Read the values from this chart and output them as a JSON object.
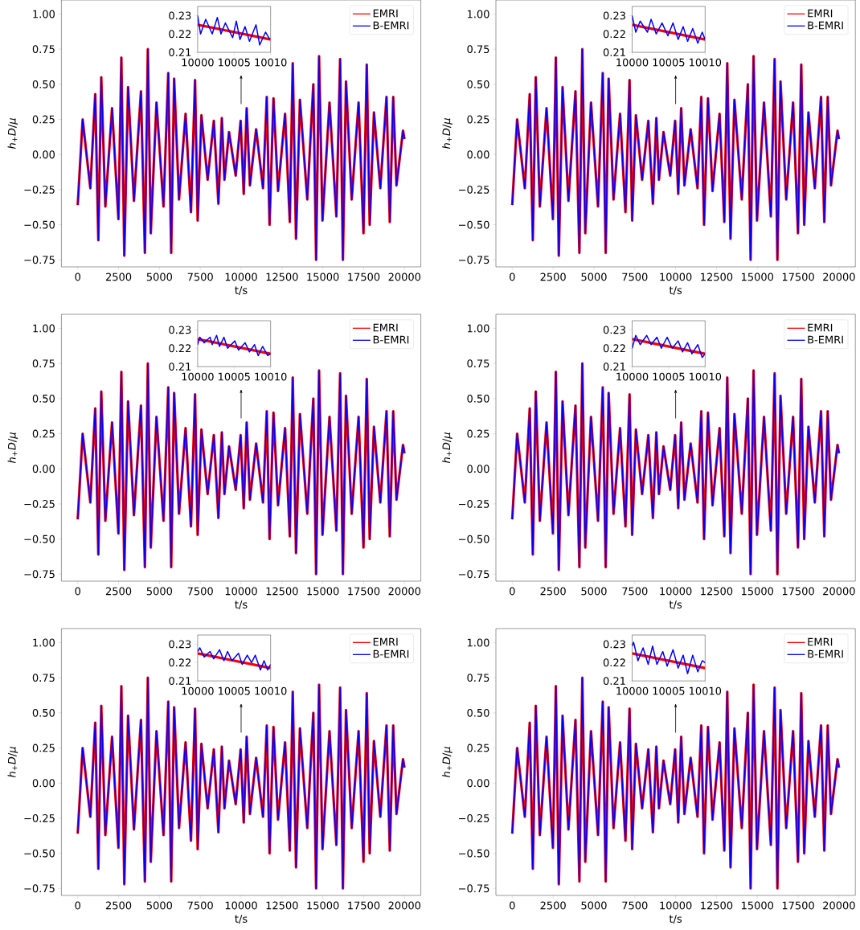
{
  "chart_data": [
    {
      "type": "line",
      "xlabel": "t/s",
      "ylabel": "*h*$_{+}$*D*/*μ*",
      "xlim": [
        -1000,
        21000
      ],
      "ylim": [
        -0.8,
        1.1
      ],
      "xticks": [
        0,
        2500,
        5000,
        7500,
        10000,
        12500,
        15000,
        17500,
        20000
      ],
      "yticks": [
        {
          "value": -0.75,
          "label": "−0.75"
        },
        {
          "value": -0.5,
          "label": "−0.50"
        },
        {
          "value": -0.25,
          "label": "−0.25"
        },
        {
          "value": 0,
          "label": "0.00"
        },
        0.25,
        {
          "value": 0.5,
          "label": "0.50"
        },
        0.75,
        {
          "value": 1,
          "label": "1.00"
        }
      ],
      "legend": "top right",
      "x": [
        0,
        300,
        770,
        1070,
        1260,
        1440,
        1690,
        2100,
        2490,
        2670,
        2850,
        3080,
        3440,
        3870,
        4110,
        4290,
        4470,
        4820,
        5250,
        5540,
        5720,
        5900,
        6200,
        6600,
        6930,
        7180,
        7340,
        7570,
        7950,
        8330,
        8610,
        8820,
        8980,
        9260,
        9670,
        9970,
        10160,
        10340,
        10540,
        10920,
        11340,
        11570,
        11740,
        11980,
        12260,
        12690,
        12980,
        13160,
        13360,
        13600,
        14050,
        14420,
        14590,
        14770,
        14980,
        15410,
        15830,
        16060,
        16230,
        16420,
        16770,
        17190,
        17490,
        17690,
        17870,
        18130,
        18520,
        18900,
        19100,
        19310,
        19510,
        19910,
        20000
      ],
      "series": [
        {
          "name": "EMRI",
          "color": "#ff0000",
          "values": [
            -0.36,
            0.25,
            -0.24,
            0.43,
            -0.61,
            0.55,
            -0.37,
            0.33,
            -0.46,
            0.69,
            -0.72,
            0.48,
            -0.33,
            0.45,
            -0.7,
            0.75,
            -0.56,
            0.37,
            -0.37,
            0.58,
            -0.7,
            0.54,
            -0.32,
            0.29,
            -0.41,
            0.53,
            -0.47,
            0.28,
            -0.18,
            0.24,
            -0.35,
            0.26,
            -0.18,
            0.16,
            -0.15,
            0.24,
            -0.28,
            0.33,
            -0.22,
            0.18,
            -0.24,
            0.41,
            -0.5,
            0.4,
            -0.26,
            0.29,
            -0.48,
            0.65,
            -0.6,
            0.39,
            -0.32,
            0.5,
            -0.75,
            0.7,
            -0.47,
            0.37,
            -0.44,
            0.68,
            -0.75,
            0.52,
            -0.32,
            0.37,
            -0.56,
            0.64,
            -0.5,
            0.3,
            -0.24,
            0.41,
            -0.48,
            0.41,
            -0.22,
            0.17,
            0.11
          ]
        },
        {
          "name": "B-EMRI",
          "color": "#0000ff",
          "values": [
            -0.36,
            0.25,
            -0.24,
            0.43,
            -0.61,
            0.55,
            -0.37,
            0.33,
            -0.46,
            0.69,
            -0.72,
            0.48,
            -0.33,
            0.45,
            -0.7,
            0.75,
            -0.56,
            0.37,
            -0.37,
            0.58,
            -0.7,
            0.54,
            -0.32,
            0.29,
            -0.41,
            0.53,
            -0.47,
            0.28,
            -0.18,
            0.24,
            -0.35,
            0.26,
            -0.18,
            0.16,
            -0.15,
            0.24,
            -0.28,
            0.33,
            -0.22,
            0.18,
            -0.24,
            0.41,
            -0.5,
            0.4,
            -0.26,
            0.29,
            -0.48,
            0.65,
            -0.6,
            0.39,
            -0.32,
            0.5,
            -0.75,
            0.7,
            -0.47,
            0.37,
            -0.44,
            0.68,
            -0.75,
            0.52,
            -0.32,
            0.37,
            -0.56,
            0.64,
            -0.5,
            0.3,
            -0.24,
            0.41,
            -0.48,
            0.41,
            -0.22,
            0.17,
            0.11
          ]
        }
      ]
    },
    {
      "type": "line",
      "xlim": [
        10000,
        10010
      ],
      "ylim": [
        0.21,
        0.235
      ],
      "xticks": [
        10000,
        10005,
        10010
      ],
      "yticks": [
        0.21,
        0.22,
        0.23
      ],
      "series": [
        {
          "color": "#ff0000",
          "x": [
            10000,
            10010
          ],
          "values": [
            0.225,
            0.217
          ]
        },
        {
          "color": "#0000ff",
          "x": [
            10000,
            10000.4,
            10001.1,
            10002,
            10002.7,
            10003.2,
            10003.8,
            10004.8,
            10005.3,
            10005.8,
            10006.5,
            10007.1,
            10008,
            10008.5,
            10009.3,
            10009.9
          ],
          "values": [
            0.23,
            0.22,
            0.228,
            0.22,
            0.229,
            0.22,
            0.226,
            0.218,
            0.227,
            0.217,
            0.224,
            0.216,
            0.225,
            0.214,
            0.221,
            0.217
          ]
        }
      ]
    },
    {
      "type": "line",
      "xlabel": "t/s",
      "ylabel": "*h*$_{+}$*D*/*μ*",
      "xlim": [
        -1000,
        21000
      ],
      "ylim": [
        -0.8,
        1.1
      ],
      "xticks": [
        0,
        2500,
        5000,
        7500,
        10000,
        12500,
        15000,
        17500,
        20000
      ],
      "yticks": [
        {
          "value": -0.75,
          "label": "−0.75"
        },
        {
          "value": -0.5,
          "label": "−0.50"
        },
        {
          "value": -0.25,
          "label": "−0.25"
        },
        {
          "value": 0,
          "label": "0.00"
        },
        0.25,
        {
          "value": 0.5,
          "label": "0.50"
        },
        0.75,
        {
          "value": 1,
          "label": "1.00"
        }
      ],
      "legend": "top right",
      "x": [
        0,
        300,
        770,
        1070,
        1260,
        1440,
        1690,
        2100,
        2490,
        2670,
        2850,
        3080,
        3440,
        3870,
        4110,
        4290,
        4470,
        4820,
        5250,
        5540,
        5720,
        5900,
        6200,
        6600,
        6930,
        7180,
        7340,
        7570,
        7950,
        8330,
        8610,
        8820,
        8980,
        9260,
        9670,
        9970,
        10160,
        10340,
        10540,
        10920,
        11340,
        11570,
        11740,
        11980,
        12260,
        12690,
        12980,
        13160,
        13360,
        13600,
        14050,
        14420,
        14590,
        14770,
        14980,
        15410,
        15830,
        16060,
        16230,
        16420,
        16770,
        17190,
        17490,
        17690,
        17870,
        18130,
        18520,
        18900,
        19100,
        19310,
        19510,
        19910,
        20000
      ],
      "series": [
        {
          "name": "EMRI",
          "color": "#ff0000",
          "values": [
            -0.36,
            0.25,
            -0.24,
            0.43,
            -0.61,
            0.55,
            -0.37,
            0.33,
            -0.46,
            0.69,
            -0.72,
            0.48,
            -0.33,
            0.45,
            -0.7,
            0.75,
            -0.56,
            0.37,
            -0.37,
            0.58,
            -0.7,
            0.54,
            -0.32,
            0.29,
            -0.41,
            0.53,
            -0.47,
            0.28,
            -0.18,
            0.24,
            -0.35,
            0.26,
            -0.18,
            0.16,
            -0.15,
            0.24,
            -0.28,
            0.33,
            -0.22,
            0.18,
            -0.24,
            0.41,
            -0.5,
            0.4,
            -0.26,
            0.29,
            -0.48,
            0.65,
            -0.6,
            0.39,
            -0.32,
            0.5,
            -0.75,
            0.7,
            -0.47,
            0.37,
            -0.44,
            0.68,
            -0.75,
            0.52,
            -0.32,
            0.37,
            -0.56,
            0.64,
            -0.5,
            0.3,
            -0.24,
            0.41,
            -0.48,
            0.41,
            -0.22,
            0.17,
            0.11
          ]
        },
        {
          "name": "B-EMRI",
          "color": "#0000ff",
          "values": [
            -0.36,
            0.25,
            -0.24,
            0.43,
            -0.61,
            0.55,
            -0.37,
            0.33,
            -0.46,
            0.69,
            -0.72,
            0.48,
            -0.33,
            0.45,
            -0.7,
            0.75,
            -0.56,
            0.37,
            -0.37,
            0.58,
            -0.7,
            0.54,
            -0.32,
            0.29,
            -0.41,
            0.53,
            -0.47,
            0.28,
            -0.18,
            0.24,
            -0.35,
            0.26,
            -0.18,
            0.16,
            -0.15,
            0.24,
            -0.28,
            0.33,
            -0.22,
            0.18,
            -0.24,
            0.41,
            -0.5,
            0.4,
            -0.26,
            0.29,
            -0.48,
            0.65,
            -0.6,
            0.39,
            -0.32,
            0.5,
            -0.75,
            0.7,
            -0.47,
            0.37,
            -0.44,
            0.68,
            -0.75,
            0.52,
            -0.32,
            0.37,
            -0.56,
            0.64,
            -0.5,
            0.3,
            -0.24,
            0.41,
            -0.48,
            0.41,
            -0.22,
            0.17,
            0.11
          ]
        }
      ]
    },
    {
      "type": "line",
      "xlim": [
        10000,
        10010
      ],
      "ylim": [
        0.21,
        0.235
      ],
      "xticks": [
        10000,
        10005,
        10010
      ],
      "yticks": [
        0.21,
        0.22,
        0.23
      ],
      "series": [
        {
          "color": "#ff0000",
          "x": [
            10000,
            10010
          ],
          "values": [
            0.225,
            0.217
          ]
        },
        {
          "color": "#0000ff",
          "x": [
            10000,
            10000.5,
            10001.1,
            10002.1,
            10002.6,
            10003.3,
            10004.1,
            10004.9,
            10005.6,
            10006.3,
            10007,
            10007.6,
            10008.3,
            10009,
            10009.6,
            10010
          ],
          "values": [
            0.23,
            0.221,
            0.227,
            0.221,
            0.228,
            0.22,
            0.226,
            0.219,
            0.226,
            0.217,
            0.224,
            0.216,
            0.223,
            0.215,
            0.221,
            0.217
          ]
        }
      ]
    },
    {
      "type": "line",
      "xlabel": "t/s",
      "ylabel": "*h*$_{+}$*D*/*μ*",
      "xlim": [
        -1000,
        21000
      ],
      "ylim": [
        -0.8,
        1.1
      ],
      "xticks": [
        0,
        2500,
        5000,
        7500,
        10000,
        12500,
        15000,
        17500,
        20000
      ],
      "yticks": [
        {
          "value": -0.75,
          "label": "−0.75"
        },
        {
          "value": -0.5,
          "label": "−0.50"
        },
        {
          "value": -0.25,
          "label": "−0.25"
        },
        {
          "value": 0,
          "label": "0.00"
        },
        0.25,
        {
          "value": 0.5,
          "label": "0.50"
        },
        0.75,
        {
          "value": 1,
          "label": "1.00"
        }
      ],
      "legend": "top right",
      "x": [
        0,
        300,
        770,
        1070,
        1260,
        1440,
        1690,
        2100,
        2490,
        2670,
        2850,
        3080,
        3440,
        3870,
        4110,
        4290,
        4470,
        4820,
        5250,
        5540,
        5720,
        5900,
        6200,
        6600,
        6930,
        7180,
        7340,
        7570,
        7950,
        8330,
        8610,
        8820,
        8980,
        9260,
        9670,
        9970,
        10160,
        10340,
        10540,
        10920,
        11340,
        11570,
        11740,
        11980,
        12260,
        12690,
        12980,
        13160,
        13360,
        13600,
        14050,
        14420,
        14590,
        14770,
        14980,
        15410,
        15830,
        16060,
        16230,
        16420,
        16770,
        17190,
        17490,
        17690,
        17870,
        18130,
        18520,
        18900,
        19100,
        19310,
        19510,
        19910,
        20000
      ],
      "series": [
        {
          "name": "EMRI",
          "color": "#ff0000",
          "values": [
            -0.36,
            0.25,
            -0.24,
            0.43,
            -0.61,
            0.55,
            -0.37,
            0.33,
            -0.46,
            0.69,
            -0.72,
            0.48,
            -0.33,
            0.45,
            -0.7,
            0.75,
            -0.56,
            0.37,
            -0.37,
            0.58,
            -0.7,
            0.54,
            -0.32,
            0.29,
            -0.41,
            0.53,
            -0.47,
            0.28,
            -0.18,
            0.24,
            -0.35,
            0.26,
            -0.18,
            0.16,
            -0.15,
            0.24,
            -0.28,
            0.33,
            -0.22,
            0.18,
            -0.24,
            0.41,
            -0.5,
            0.4,
            -0.26,
            0.29,
            -0.48,
            0.65,
            -0.6,
            0.39,
            -0.32,
            0.5,
            -0.75,
            0.7,
            -0.47,
            0.37,
            -0.44,
            0.68,
            -0.75,
            0.52,
            -0.32,
            0.37,
            -0.56,
            0.64,
            -0.5,
            0.3,
            -0.24,
            0.41,
            -0.48,
            0.41,
            -0.22,
            0.17,
            0.11
          ]
        },
        {
          "name": "B-EMRI",
          "color": "#0000ff",
          "values": [
            -0.36,
            0.25,
            -0.24,
            0.43,
            -0.61,
            0.55,
            -0.37,
            0.33,
            -0.46,
            0.69,
            -0.72,
            0.48,
            -0.33,
            0.45,
            -0.7,
            0.75,
            -0.56,
            0.37,
            -0.37,
            0.58,
            -0.7,
            0.54,
            -0.32,
            0.29,
            -0.41,
            0.53,
            -0.47,
            0.28,
            -0.18,
            0.24,
            -0.35,
            0.26,
            -0.18,
            0.16,
            -0.15,
            0.24,
            -0.28,
            0.33,
            -0.22,
            0.18,
            -0.24,
            0.41,
            -0.5,
            0.4,
            -0.26,
            0.29,
            -0.48,
            0.65,
            -0.6,
            0.39,
            -0.32,
            0.5,
            -0.75,
            0.7,
            -0.47,
            0.37,
            -0.44,
            0.68,
            -0.75,
            0.52,
            -0.32,
            0.37,
            -0.56,
            0.64,
            -0.5,
            0.3,
            -0.24,
            0.41,
            -0.48,
            0.41,
            -0.22,
            0.17,
            0.11
          ]
        }
      ]
    },
    {
      "type": "line",
      "xlim": [
        10000,
        10010
      ],
      "ylim": [
        0.21,
        0.235
      ],
      "xticks": [
        10000,
        10005,
        10010
      ],
      "yticks": [
        0.21,
        0.22,
        0.23
      ],
      "series": [
        {
          "color": "#ff0000",
          "x": [
            10000,
            10010
          ],
          "values": [
            0.225,
            0.217
          ]
        },
        {
          "color": "#0000ff",
          "x": [
            10000,
            10000.3,
            10000.9,
            10001.7,
            10002,
            10002.6,
            10003,
            10003.6,
            10004.1,
            10005.1,
            10005.6,
            10006.5,
            10007.1,
            10007.8,
            10008.3,
            10008.9,
            10009.6,
            10010
          ],
          "values": [
            0.222,
            0.226,
            0.223,
            0.226,
            0.222,
            0.227,
            0.221,
            0.226,
            0.22,
            0.224,
            0.219,
            0.223,
            0.218,
            0.222,
            0.216,
            0.221,
            0.216,
            0.217
          ]
        }
      ]
    },
    {
      "type": "line",
      "xlabel": "t/s",
      "ylabel": "*h*$_{+}$*D*/*μ*",
      "xlim": [
        -1000,
        21000
      ],
      "ylim": [
        -0.8,
        1.1
      ],
      "xticks": [
        0,
        2500,
        5000,
        7500,
        10000,
        12500,
        15000,
        17500,
        20000
      ],
      "yticks": [
        {
          "value": -0.75,
          "label": "−0.75"
        },
        {
          "value": -0.5,
          "label": "−0.50"
        },
        {
          "value": -0.25,
          "label": "−0.25"
        },
        {
          "value": 0,
          "label": "0.00"
        },
        0.25,
        {
          "value": 0.5,
          "label": "0.50"
        },
        0.75,
        {
          "value": 1,
          "label": "1.00"
        }
      ],
      "legend": "top right",
      "x": [
        0,
        300,
        770,
        1070,
        1260,
        1440,
        1690,
        2100,
        2490,
        2670,
        2850,
        3080,
        3440,
        3870,
        4110,
        4290,
        4470,
        4820,
        5250,
        5540,
        5720,
        5900,
        6200,
        6600,
        6930,
        7180,
        7340,
        7570,
        7950,
        8330,
        8610,
        8820,
        8980,
        9260,
        9670,
        9970,
        10160,
        10340,
        10540,
        10920,
        11340,
        11570,
        11740,
        11980,
        12260,
        12690,
        12980,
        13160,
        13360,
        13600,
        14050,
        14420,
        14590,
        14770,
        14980,
        15410,
        15830,
        16060,
        16230,
        16420,
        16770,
        17190,
        17490,
        17690,
        17870,
        18130,
        18520,
        18900,
        19100,
        19310,
        19510,
        19910,
        20000
      ],
      "series": [
        {
          "name": "EMRI",
          "color": "#ff0000",
          "values": [
            -0.36,
            0.25,
            -0.24,
            0.43,
            -0.61,
            0.55,
            -0.37,
            0.33,
            -0.46,
            0.69,
            -0.72,
            0.48,
            -0.33,
            0.45,
            -0.7,
            0.75,
            -0.56,
            0.37,
            -0.37,
            0.58,
            -0.7,
            0.54,
            -0.32,
            0.29,
            -0.41,
            0.53,
            -0.47,
            0.28,
            -0.18,
            0.24,
            -0.35,
            0.26,
            -0.18,
            0.16,
            -0.15,
            0.24,
            -0.28,
            0.33,
            -0.22,
            0.18,
            -0.24,
            0.41,
            -0.5,
            0.4,
            -0.26,
            0.29,
            -0.48,
            0.65,
            -0.6,
            0.39,
            -0.32,
            0.5,
            -0.75,
            0.7,
            -0.47,
            0.37,
            -0.44,
            0.68,
            -0.75,
            0.52,
            -0.32,
            0.37,
            -0.56,
            0.64,
            -0.5,
            0.3,
            -0.24,
            0.41,
            -0.48,
            0.41,
            -0.22,
            0.17,
            0.11
          ]
        },
        {
          "name": "B-EMRI",
          "color": "#0000ff",
          "values": [
            -0.36,
            0.25,
            -0.24,
            0.43,
            -0.61,
            0.55,
            -0.37,
            0.33,
            -0.46,
            0.69,
            -0.72,
            0.48,
            -0.33,
            0.45,
            -0.7,
            0.75,
            -0.56,
            0.37,
            -0.37,
            0.58,
            -0.7,
            0.54,
            -0.32,
            0.29,
            -0.41,
            0.53,
            -0.47,
            0.28,
            -0.18,
            0.24,
            -0.35,
            0.26,
            -0.18,
            0.16,
            -0.15,
            0.24,
            -0.28,
            0.33,
            -0.22,
            0.18,
            -0.24,
            0.41,
            -0.5,
            0.4,
            -0.26,
            0.29,
            -0.48,
            0.65,
            -0.6,
            0.39,
            -0.32,
            0.5,
            -0.75,
            0.7,
            -0.47,
            0.37,
            -0.44,
            0.68,
            -0.75,
            0.52,
            -0.32,
            0.37,
            -0.56,
            0.64,
            -0.5,
            0.3,
            -0.24,
            0.41,
            -0.48,
            0.41,
            -0.22,
            0.17,
            0.11
          ]
        }
      ]
    },
    {
      "type": "line",
      "xlim": [
        10000,
        10010
      ],
      "ylim": [
        0.21,
        0.235
      ],
      "xticks": [
        10000,
        10005,
        10010
      ],
      "yticks": [
        0.21,
        0.22,
        0.23
      ],
      "series": [
        {
          "color": "#ff0000",
          "x": [
            10000,
            10010
          ],
          "values": [
            0.225,
            0.217
          ]
        },
        {
          "color": "#0000ff",
          "x": [
            10000,
            10000.5,
            10001.1,
            10002,
            10002.6,
            10003.4,
            10004,
            10004.8,
            10005.5,
            10006.3,
            10006.9,
            10007.6,
            10008.2,
            10009,
            10009.6,
            10010
          ],
          "values": [
            0.22,
            0.227,
            0.222,
            0.227,
            0.222,
            0.226,
            0.22,
            0.226,
            0.22,
            0.224,
            0.218,
            0.223,
            0.217,
            0.222,
            0.215,
            0.217
          ]
        }
      ]
    },
    {
      "type": "line",
      "xlabel": "t/s",
      "ylabel": "*h*$_{+}$*D*/*μ*",
      "xlim": [
        -1000,
        21000
      ],
      "ylim": [
        -0.8,
        1.1
      ],
      "xticks": [
        0,
        2500,
        5000,
        7500,
        10000,
        12500,
        15000,
        17500,
        20000
      ],
      "yticks": [
        {
          "value": -0.75,
          "label": "−0.75"
        },
        {
          "value": -0.5,
          "label": "−0.50"
        },
        {
          "value": -0.25,
          "label": "−0.25"
        },
        {
          "value": 0,
          "label": "0.00"
        },
        0.25,
        {
          "value": 0.5,
          "label": "0.50"
        },
        0.75,
        {
          "value": 1,
          "label": "1.00"
        }
      ],
      "legend": "top right",
      "x": [
        0,
        300,
        770,
        1070,
        1260,
        1440,
        1690,
        2100,
        2490,
        2670,
        2850,
        3080,
        3440,
        3870,
        4110,
        4290,
        4470,
        4820,
        5250,
        5540,
        5720,
        5900,
        6200,
        6600,
        6930,
        7180,
        7340,
        7570,
        7950,
        8330,
        8610,
        8820,
        8980,
        9260,
        9670,
        9970,
        10160,
        10340,
        10540,
        10920,
        11340,
        11570,
        11740,
        11980,
        12260,
        12690,
        12980,
        13160,
        13360,
        13600,
        14050,
        14420,
        14590,
        14770,
        14980,
        15410,
        15830,
        16060,
        16230,
        16420,
        16770,
        17190,
        17490,
        17690,
        17870,
        18130,
        18520,
        18900,
        19100,
        19310,
        19510,
        19910,
        20000
      ],
      "series": [
        {
          "name": "EMRI",
          "color": "#ff0000",
          "values": [
            -0.36,
            0.25,
            -0.24,
            0.43,
            -0.61,
            0.55,
            -0.37,
            0.33,
            -0.46,
            0.69,
            -0.72,
            0.48,
            -0.33,
            0.45,
            -0.7,
            0.75,
            -0.56,
            0.37,
            -0.37,
            0.58,
            -0.7,
            0.54,
            -0.32,
            0.29,
            -0.41,
            0.53,
            -0.47,
            0.28,
            -0.18,
            0.24,
            -0.35,
            0.26,
            -0.18,
            0.16,
            -0.15,
            0.24,
            -0.28,
            0.33,
            -0.22,
            0.18,
            -0.24,
            0.41,
            -0.5,
            0.4,
            -0.26,
            0.29,
            -0.48,
            0.65,
            -0.6,
            0.39,
            -0.32,
            0.5,
            -0.75,
            0.7,
            -0.47,
            0.37,
            -0.44,
            0.68,
            -0.75,
            0.52,
            -0.32,
            0.37,
            -0.56,
            0.64,
            -0.5,
            0.3,
            -0.24,
            0.41,
            -0.48,
            0.41,
            -0.22,
            0.17,
            0.11
          ]
        },
        {
          "name": "B-EMRI",
          "color": "#0000ff",
          "values": [
            -0.36,
            0.25,
            -0.24,
            0.43,
            -0.61,
            0.55,
            -0.37,
            0.33,
            -0.46,
            0.69,
            -0.72,
            0.48,
            -0.33,
            0.45,
            -0.7,
            0.75,
            -0.56,
            0.37,
            -0.37,
            0.58,
            -0.7,
            0.54,
            -0.32,
            0.29,
            -0.41,
            0.53,
            -0.47,
            0.28,
            -0.18,
            0.24,
            -0.35,
            0.26,
            -0.18,
            0.16,
            -0.15,
            0.24,
            -0.28,
            0.33,
            -0.22,
            0.18,
            -0.24,
            0.41,
            -0.5,
            0.4,
            -0.26,
            0.29,
            -0.48,
            0.65,
            -0.6,
            0.39,
            -0.32,
            0.5,
            -0.75,
            0.7,
            -0.47,
            0.37,
            -0.44,
            0.68,
            -0.75,
            0.52,
            -0.32,
            0.37,
            -0.56,
            0.64,
            -0.5,
            0.3,
            -0.24,
            0.41,
            -0.48,
            0.41,
            -0.22,
            0.17,
            0.11
          ]
        }
      ]
    },
    {
      "type": "line",
      "xlim": [
        10000,
        10010
      ],
      "ylim": [
        0.21,
        0.235
      ],
      "xticks": [
        10000,
        10005,
        10010
      ],
      "yticks": [
        0.21,
        0.22,
        0.23
      ],
      "series": [
        {
          "color": "#ff0000",
          "x": [
            10000,
            10010
          ],
          "values": [
            0.225,
            0.217
          ]
        },
        {
          "color": "#0000ff",
          "x": [
            10000,
            10000.3,
            10000.9,
            10001.7,
            10002.2,
            10003,
            10003.6,
            10004.1,
            10004.7,
            10005.6,
            10006.1,
            10006.8,
            10007.4,
            10007.9,
            10008.6,
            10009.1,
            10009.6,
            10010
          ],
          "values": [
            0.226,
            0.228,
            0.223,
            0.226,
            0.222,
            0.227,
            0.221,
            0.226,
            0.221,
            0.225,
            0.219,
            0.224,
            0.22,
            0.224,
            0.216,
            0.221,
            0.216,
            0.219
          ]
        }
      ]
    },
    {
      "type": "line",
      "xlabel": "t/s",
      "ylabel": "*h*$_{+}$*D*/*μ*",
      "xlim": [
        -1000,
        21000
      ],
      "ylim": [
        -0.8,
        1.1
      ],
      "xticks": [
        0,
        2500,
        5000,
        7500,
        10000,
        12500,
        15000,
        17500,
        20000
      ],
      "yticks": [
        {
          "value": -0.75,
          "label": "−0.75"
        },
        {
          "value": -0.5,
          "label": "−0.50"
        },
        {
          "value": -0.25,
          "label": "−0.25"
        },
        {
          "value": 0,
          "label": "0.00"
        },
        0.25,
        {
          "value": 0.5,
          "label": "0.50"
        },
        0.75,
        {
          "value": 1,
          "label": "1.00"
        }
      ],
      "legend": "top right",
      "x": [
        0,
        300,
        770,
        1070,
        1260,
        1440,
        1690,
        2100,
        2490,
        2670,
        2850,
        3080,
        3440,
        3870,
        4110,
        4290,
        4470,
        4820,
        5250,
        5540,
        5720,
        5900,
        6200,
        6600,
        6930,
        7180,
        7340,
        7570,
        7950,
        8330,
        8610,
        8820,
        8980,
        9260,
        9670,
        9970,
        10160,
        10340,
        10540,
        10920,
        11340,
        11570,
        11740,
        11980,
        12260,
        12690,
        12980,
        13160,
        13360,
        13600,
        14050,
        14420,
        14590,
        14770,
        14980,
        15410,
        15830,
        16060,
        16230,
        16420,
        16770,
        17190,
        17490,
        17690,
        17870,
        18130,
        18520,
        18900,
        19100,
        19310,
        19510,
        19910,
        20000
      ],
      "series": [
        {
          "name": "EMRI",
          "color": "#ff0000",
          "values": [
            -0.36,
            0.25,
            -0.24,
            0.43,
            -0.61,
            0.55,
            -0.37,
            0.33,
            -0.46,
            0.69,
            -0.72,
            0.48,
            -0.33,
            0.45,
            -0.7,
            0.75,
            -0.56,
            0.37,
            -0.37,
            0.58,
            -0.7,
            0.54,
            -0.32,
            0.29,
            -0.41,
            0.53,
            -0.47,
            0.28,
            -0.18,
            0.24,
            -0.35,
            0.26,
            -0.18,
            0.16,
            -0.15,
            0.24,
            -0.28,
            0.33,
            -0.22,
            0.18,
            -0.24,
            0.41,
            -0.5,
            0.4,
            -0.26,
            0.29,
            -0.48,
            0.65,
            -0.6,
            0.39,
            -0.32,
            0.5,
            -0.75,
            0.7,
            -0.47,
            0.37,
            -0.44,
            0.68,
            -0.75,
            0.52,
            -0.32,
            0.37,
            -0.56,
            0.64,
            -0.5,
            0.3,
            -0.24,
            0.41,
            -0.48,
            0.41,
            -0.22,
            0.17,
            0.11
          ]
        },
        {
          "name": "B-EMRI",
          "color": "#0000ff",
          "values": [
            -0.36,
            0.25,
            -0.24,
            0.43,
            -0.61,
            0.55,
            -0.37,
            0.33,
            -0.46,
            0.69,
            -0.72,
            0.48,
            -0.33,
            0.45,
            -0.7,
            0.75,
            -0.56,
            0.37,
            -0.37,
            0.58,
            -0.7,
            0.54,
            -0.32,
            0.29,
            -0.41,
            0.53,
            -0.47,
            0.28,
            -0.18,
            0.24,
            -0.35,
            0.26,
            -0.18,
            0.16,
            -0.15,
            0.24,
            -0.28,
            0.33,
            -0.22,
            0.18,
            -0.24,
            0.41,
            -0.5,
            0.4,
            -0.26,
            0.29,
            -0.48,
            0.65,
            -0.6,
            0.39,
            -0.32,
            0.5,
            -0.75,
            0.7,
            -0.47,
            0.37,
            -0.44,
            0.68,
            -0.75,
            0.52,
            -0.32,
            0.37,
            -0.56,
            0.64,
            -0.5,
            0.3,
            -0.24,
            0.41,
            -0.48,
            0.41,
            -0.22,
            0.17,
            0.11
          ]
        }
      ]
    },
    {
      "type": "line",
      "xlim": [
        10000,
        10010
      ],
      "ylim": [
        0.21,
        0.235
      ],
      "xticks": [
        10000,
        10005,
        10010
      ],
      "yticks": [
        0.21,
        0.22,
        0.23
      ],
      "series": [
        {
          "color": "#ff0000",
          "x": [
            10000,
            10010
          ],
          "values": [
            0.225,
            0.217
          ]
        },
        {
          "color": "#0000ff",
          "x": [
            10000,
            10000.2,
            10000.8,
            10001.5,
            10002.2,
            10002.8,
            10003.4,
            10004.2,
            10004.8,
            10005.6,
            10006.3,
            10007,
            10007.6,
            10008.3,
            10009,
            10009.6,
            10010
          ],
          "values": [
            0.229,
            0.231,
            0.221,
            0.228,
            0.219,
            0.229,
            0.219,
            0.226,
            0.218,
            0.227,
            0.217,
            0.224,
            0.214,
            0.224,
            0.215,
            0.221,
            0.22
          ]
        }
      ]
    }
  ]
}
